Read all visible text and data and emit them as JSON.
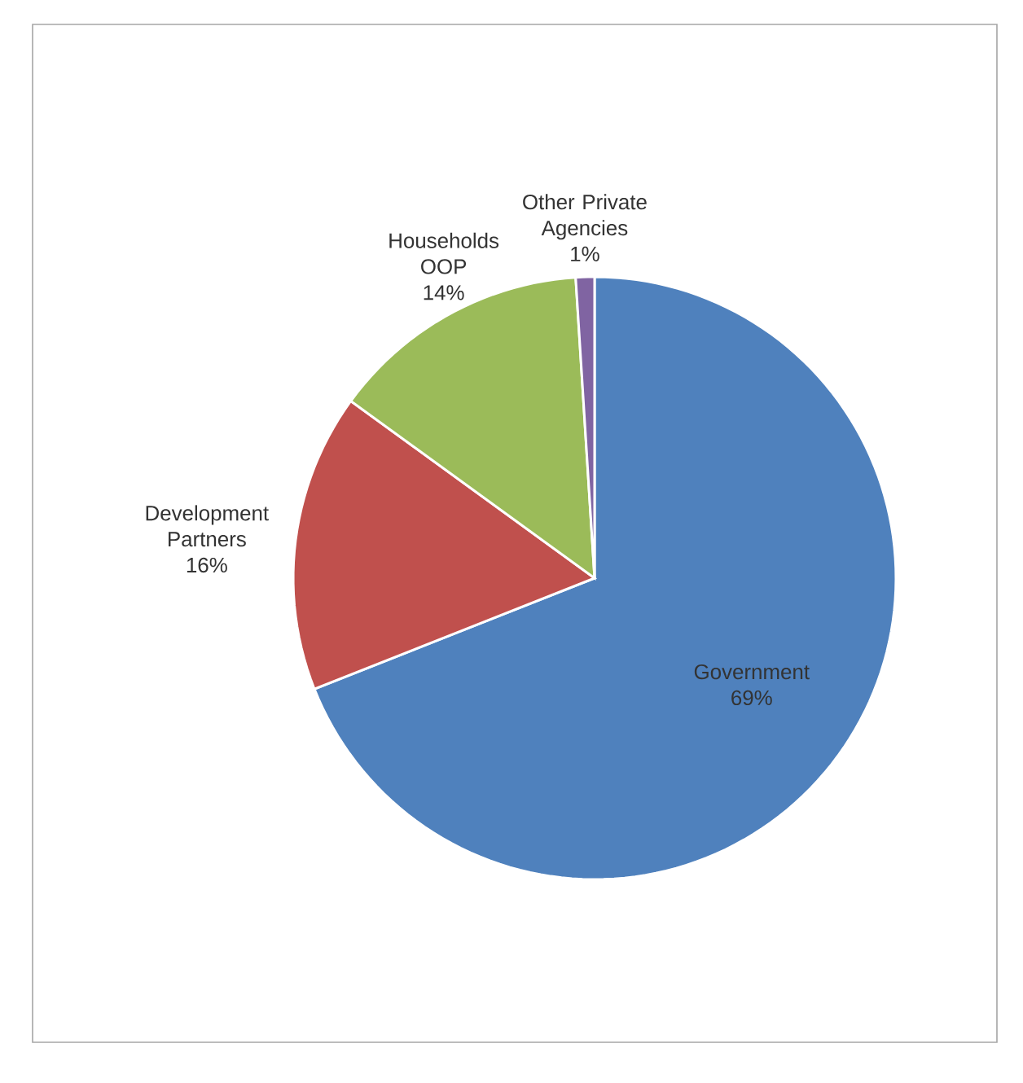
{
  "chart_data": {
    "type": "pie",
    "categories": [
      "Government",
      "Development Partners",
      "Households OOP",
      "Other Private Agencies"
    ],
    "values": [
      69,
      16,
      14,
      1
    ],
    "colors": [
      "#4f81bd",
      "#c0504d",
      "#9bbb59",
      "#8064a2"
    ],
    "value_labels": [
      "69%",
      "16%",
      "14%",
      "1%"
    ]
  }
}
